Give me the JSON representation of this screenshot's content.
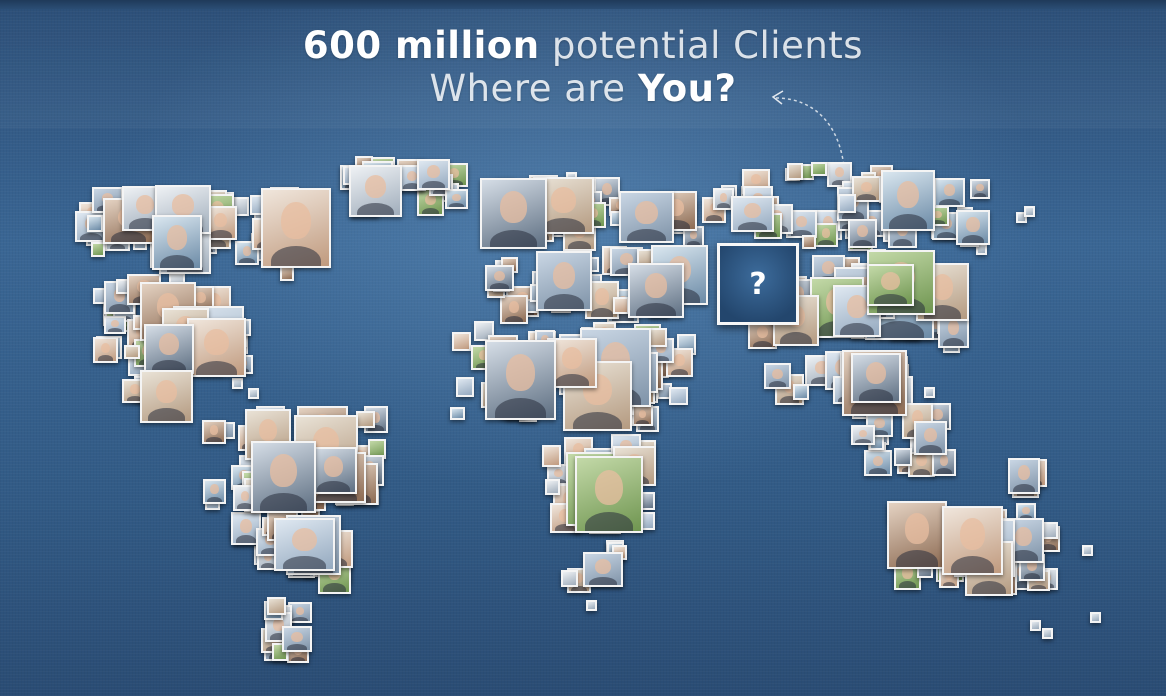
{
  "headline": {
    "line1_bold": "600 million",
    "line1_light": " potential Clients",
    "line2_light": "Where are ",
    "line2_bold": "You?"
  },
  "question_tile": {
    "symbol": "?"
  },
  "colors": {
    "background": "#325b86",
    "headline_text": "#ffffff",
    "tile_border": "#f4f4f4",
    "question_tile_fill": "#2b5380"
  }
}
